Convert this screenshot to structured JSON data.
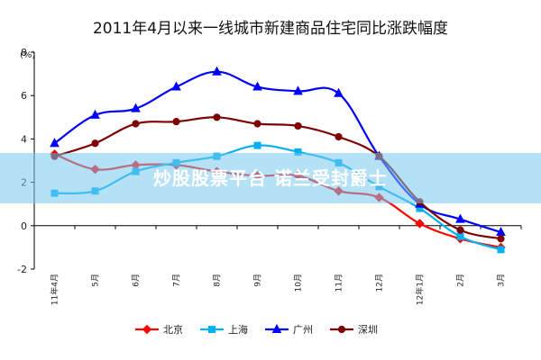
{
  "chart_data": {
    "type": "line",
    "title": "2011年4月以来一线城市新建商品住宅同比涨跌幅度",
    "ylabel": "(%)",
    "xlabel": "",
    "ylim": [
      -2,
      8
    ],
    "yticks": [
      -2,
      0,
      2,
      4,
      6,
      8
    ],
    "categories": [
      "11年4月",
      "5月",
      "6月",
      "7月",
      "8月",
      "9月",
      "10月",
      "11月",
      "12月",
      "12年1月",
      "2月",
      "3月"
    ],
    "grid": false,
    "legend_position": "bottom",
    "series": [
      {
        "name": "北京",
        "color": "#ff0000",
        "marker": "diamond",
        "values": [
          3.3,
          2.6,
          2.8,
          2.8,
          2.5,
          2.3,
          2.3,
          1.6,
          1.3,
          0.1,
          -0.6,
          -1.0
        ]
      },
      {
        "name": "上海",
        "color": "#00b0f0",
        "marker": "square",
        "values": [
          1.5,
          1.6,
          2.5,
          2.9,
          3.2,
          3.7,
          3.4,
          2.9,
          1.8,
          0.8,
          -0.5,
          -1.1
        ]
      },
      {
        "name": "广州",
        "color": "#0000ff",
        "marker": "triangle",
        "values": [
          3.8,
          5.1,
          5.4,
          6.4,
          7.1,
          6.4,
          6.2,
          6.1,
          3.2,
          1.0,
          0.3,
          -0.3
        ]
      },
      {
        "name": "深圳",
        "color": "#7f0000",
        "marker": "circle",
        "values": [
          3.2,
          3.8,
          4.7,
          4.8,
          5.0,
          4.7,
          4.6,
          4.1,
          3.2,
          1.1,
          -0.2,
          -0.6
        ]
      }
    ]
  },
  "watermark": {
    "text": "炒股股票平台 诺兰受封爵士"
  }
}
